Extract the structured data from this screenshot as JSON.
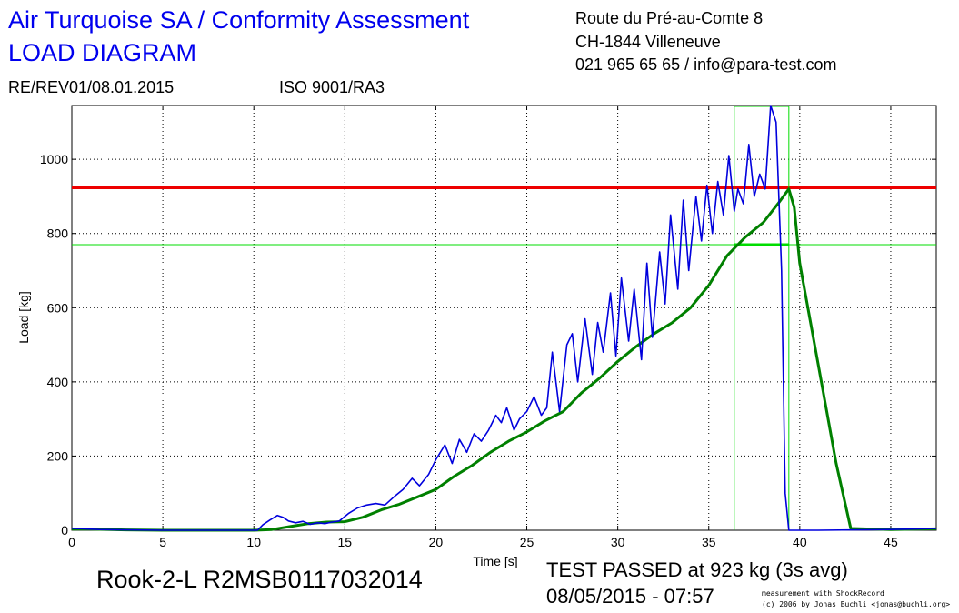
{
  "header": {
    "title_line1": "Air Turquoise SA / Conformity Assessment",
    "title_line2": "LOAD DIAGRAM",
    "address_line1": "Route du Pré-au-Comte 8",
    "address_line2": "CH-1844 Villeneuve",
    "address_line3": "021 965 65 65 / info@para-test.com",
    "revision": "RE/REV01/08.01.2015",
    "iso": "ISO 9001/RA3"
  },
  "footer": {
    "product": "Rook-2-L R2MSB0117032014",
    "result": "TEST PASSED at 923 kg (3s avg)",
    "datetime": "08/05/2015 - 07:57",
    "credit_line1": "measurement with ShockRecord",
    "credit_line2": "(c) 2006 by Jonas Buchli <jonas@buchli.org>"
  },
  "colors": {
    "raw": "#0000dd",
    "average": "#008000",
    "limit": "#ee0000",
    "markers": "#00dd00"
  },
  "chart_data": {
    "type": "line",
    "xlabel": "Time [s]",
    "ylabel": "Load [kg]",
    "xlim": [
      0,
      47.5
    ],
    "ylim": [
      0,
      1145
    ],
    "xticks": [
      0,
      5,
      10,
      15,
      20,
      25,
      30,
      35,
      40,
      45
    ],
    "yticks": [
      0,
      200,
      400,
      600,
      800,
      1000
    ],
    "grid": true,
    "reference_lines": [
      {
        "kind": "horizontal",
        "y": 923,
        "color": "red"
      },
      {
        "kind": "horizontal",
        "y": 770,
        "color": "green"
      },
      {
        "kind": "vertical",
        "x": 36.4,
        "color": "green"
      },
      {
        "kind": "vertical",
        "x": 39.4,
        "color": "green"
      },
      {
        "kind": "segment",
        "x": [
          36.4,
          39.4
        ],
        "y": [
          770,
          770
        ],
        "color": "green"
      }
    ],
    "series": [
      {
        "key": "raw",
        "x": [
          0,
          0.7,
          1.5,
          3,
          5,
          8,
          10.2,
          10.5,
          10.9,
          11.3,
          11.6,
          11.9,
          12.3,
          12.7,
          13.1,
          13.5,
          13.9,
          14.3,
          14.7,
          15.2,
          15.7,
          16.2,
          16.7,
          17.2,
          17.7,
          18.2,
          18.7,
          19.1,
          19.6,
          20.0,
          20.5,
          20.9,
          21.3,
          21.7,
          22.1,
          22.5,
          22.9,
          23.3,
          23.6,
          23.9,
          24.3,
          24.6,
          25.0,
          25.4,
          25.8,
          26.1,
          26.4,
          26.8,
          27.2,
          27.5,
          27.8,
          28.2,
          28.6,
          28.9,
          29.2,
          29.6,
          29.9,
          30.2,
          30.6,
          30.9,
          31.3,
          31.6,
          31.9,
          32.3,
          32.6,
          32.9,
          33.3,
          33.6,
          33.9,
          34.3,
          34.6,
          34.9,
          35.2,
          35.5,
          35.8,
          36.1,
          36.4,
          36.6,
          36.9,
          37.2,
          37.5,
          37.8,
          38.1,
          38.4,
          38.7,
          39.0,
          39.2,
          39.4,
          39.6,
          39.8,
          40.0,
          41,
          45,
          47.5
        ],
        "y": [
          5,
          4,
          2,
          1,
          0,
          0,
          0,
          15,
          28,
          40,
          35,
          25,
          20,
          24,
          16,
          20,
          18,
          22,
          25,
          45,
          60,
          68,
          72,
          68,
          90,
          110,
          140,
          120,
          150,
          190,
          230,
          180,
          245,
          210,
          260,
          240,
          270,
          310,
          290,
          330,
          270,
          300,
          320,
          360,
          310,
          330,
          480,
          320,
          500,
          530,
          400,
          570,
          420,
          560,
          480,
          640,
          470,
          680,
          510,
          650,
          460,
          720,
          520,
          750,
          610,
          850,
          650,
          890,
          700,
          900,
          780,
          930,
          800,
          940,
          850,
          1010,
          860,
          920,
          880,
          1040,
          900,
          960,
          920,
          1145,
          1100,
          700,
          100,
          0,
          0,
          0,
          0,
          0,
          2,
          5
        ]
      },
      {
        "key": "average",
        "x": [
          0,
          1,
          3,
          5,
          8,
          10,
          11,
          12,
          13,
          14,
          15,
          16,
          17,
          18,
          19,
          20,
          21,
          22,
          23,
          24,
          25,
          26,
          27,
          28,
          29,
          30,
          31,
          32,
          33,
          34,
          35,
          36,
          37,
          38,
          38.8,
          39.4,
          39.7,
          40.0,
          41,
          42,
          42.8,
          45,
          47.5
        ],
        "y": [
          3,
          3,
          1,
          0,
          0,
          0,
          2,
          10,
          18,
          22,
          23,
          35,
          55,
          70,
          90,
          110,
          145,
          175,
          210,
          240,
          265,
          295,
          320,
          370,
          410,
          455,
          495,
          530,
          560,
          600,
          660,
          740,
          790,
          830,
          880,
          920,
          870,
          720,
          450,
          180,
          5,
          2,
          4
        ]
      }
    ]
  }
}
